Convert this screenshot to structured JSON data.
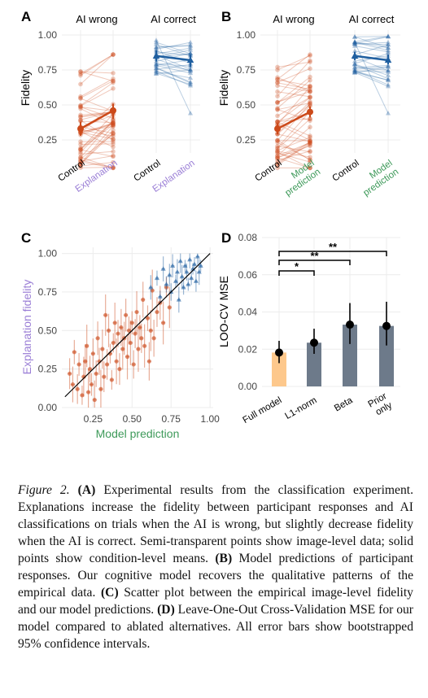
{
  "chart_data": [
    {
      "panel_label": "A",
      "type": "line",
      "ylabel": "Fidelity",
      "ylim": [
        0.0,
        1.0
      ],
      "yticks": [
        "1.00",
        "0.75",
        "0.50",
        "0.25"
      ],
      "groups": [
        {
          "title": "AI wrong",
          "conditions": [
            "Control",
            "Explanation"
          ],
          "mean": [
            0.33,
            0.46
          ],
          "ci_low": [
            0.28,
            0.4
          ],
          "ci_high": [
            0.38,
            0.51
          ],
          "color": "#cc4a1a",
          "marker": "circle",
          "label_colors": [
            "#000000",
            "#9b7fd6"
          ]
        },
        {
          "title": "AI correct",
          "conditions": [
            "Control",
            "Explanation"
          ],
          "mean": [
            0.85,
            0.82
          ],
          "ci_low": [
            0.81,
            0.77
          ],
          "ci_high": [
            0.89,
            0.86
          ],
          "color": "#1f5fa0",
          "marker": "triangle",
          "label_colors": [
            "#000000",
            "#9b7fd6"
          ]
        }
      ]
    },
    {
      "panel_label": "B",
      "type": "line",
      "ylabel": "Fidelity",
      "ylim": [
        0.0,
        1.0
      ],
      "yticks": [
        "1.00",
        "0.75",
        "0.50",
        "0.25"
      ],
      "groups": [
        {
          "title": "AI wrong",
          "conditions": [
            "Control",
            "Model prediction"
          ],
          "mean": [
            0.33,
            0.45
          ],
          "ci_low": [
            0.29,
            0.41
          ],
          "ci_high": [
            0.37,
            0.49
          ],
          "color": "#cc4a1a",
          "marker": "circle",
          "label_colors": [
            "#000000",
            "#3e9a5a"
          ]
        },
        {
          "title": "AI correct",
          "conditions": [
            "Control",
            "Model prediction"
          ],
          "mean": [
            0.85,
            0.82
          ],
          "ci_low": [
            0.82,
            0.79
          ],
          "ci_high": [
            0.88,
            0.86
          ],
          "color": "#1f5fa0",
          "marker": "triangle",
          "label_colors": [
            "#000000",
            "#3e9a5a"
          ]
        }
      ]
    },
    {
      "panel_label": "C",
      "type": "scatter",
      "xlabel": "Model prediction",
      "ylabel": "Explanation fidelity",
      "xlim": [
        0.05,
        1.02
      ],
      "ylim": [
        0.0,
        1.04
      ],
      "xticks": [
        "0.25",
        "0.50",
        "0.75",
        "1.00"
      ],
      "yticks": [
        "1.00",
        "0.75",
        "0.50",
        "0.25",
        "0.00"
      ],
      "xlabel_color": "#3e9a5a",
      "ylabel_color": "#9b7fd6",
      "reference_line": "y = x",
      "series": [
        {
          "name": "AI wrong",
          "color": "#cc4a1a",
          "marker": "circle",
          "points": [
            [
              0.1,
              0.22
            ],
            [
              0.12,
              0.15
            ],
            [
              0.13,
              0.36
            ],
            [
              0.15,
              0.12
            ],
            [
              0.16,
              0.28
            ],
            [
              0.18,
              0.08
            ],
            [
              0.19,
              0.2
            ],
            [
              0.2,
              0.3
            ],
            [
              0.21,
              0.4
            ],
            [
              0.22,
              0.1
            ],
            [
              0.23,
              0.25
            ],
            [
              0.24,
              0.15
            ],
            [
              0.25,
              0.35
            ],
            [
              0.26,
              0.05
            ],
            [
              0.27,
              0.22
            ],
            [
              0.28,
              0.45
            ],
            [
              0.29,
              0.3
            ],
            [
              0.3,
              0.12
            ],
            [
              0.31,
              0.38
            ],
            [
              0.32,
              0.2
            ],
            [
              0.33,
              0.6
            ],
            [
              0.34,
              0.28
            ],
            [
              0.35,
              0.5
            ],
            [
              0.36,
              0.35
            ],
            [
              0.37,
              0.18
            ],
            [
              0.38,
              0.42
            ],
            [
              0.39,
              0.55
            ],
            [
              0.4,
              0.3
            ],
            [
              0.41,
              0.48
            ],
            [
              0.42,
              0.25
            ],
            [
              0.43,
              0.52
            ],
            [
              0.44,
              0.38
            ],
            [
              0.45,
              0.45
            ],
            [
              0.46,
              0.6
            ],
            [
              0.47,
              0.33
            ],
            [
              0.48,
              0.5
            ],
            [
              0.49,
              0.42
            ],
            [
              0.5,
              0.55
            ],
            [
              0.51,
              0.28
            ],
            [
              0.52,
              0.48
            ],
            [
              0.53,
              0.62
            ],
            [
              0.54,
              0.38
            ],
            [
              0.55,
              0.52
            ],
            [
              0.56,
              0.45
            ],
            [
              0.57,
              0.7
            ],
            [
              0.58,
              0.4
            ],
            [
              0.6,
              0.58
            ],
            [
              0.61,
              0.3
            ],
            [
              0.62,
              0.5
            ],
            [
              0.63,
              0.76
            ],
            [
              0.64,
              0.45
            ],
            [
              0.66,
              0.62
            ],
            [
              0.68,
              0.68
            ],
            [
              0.7,
              0.55
            ],
            [
              0.72,
              0.78
            ],
            [
              0.74,
              0.65
            ]
          ],
          "ci_halfwidth": 0.1
        },
        {
          "name": "AI correct",
          "color": "#1f5fa0",
          "marker": "triangle",
          "points": [
            [
              0.62,
              0.78
            ],
            [
              0.66,
              0.84
            ],
            [
              0.68,
              0.72
            ],
            [
              0.7,
              0.9
            ],
            [
              0.72,
              0.8
            ],
            [
              0.74,
              0.86
            ],
            [
              0.75,
              0.75
            ],
            [
              0.76,
              0.92
            ],
            [
              0.78,
              0.82
            ],
            [
              0.79,
              0.88
            ],
            [
              0.8,
              0.7
            ],
            [
              0.81,
              0.95
            ],
            [
              0.82,
              0.85
            ],
            [
              0.83,
              0.78
            ],
            [
              0.84,
              0.92
            ],
            [
              0.85,
              0.88
            ],
            [
              0.86,
              0.8
            ],
            [
              0.87,
              0.96
            ],
            [
              0.88,
              0.84
            ],
            [
              0.89,
              0.9
            ],
            [
              0.9,
              0.93
            ],
            [
              0.91,
              0.82
            ],
            [
              0.92,
              0.98
            ],
            [
              0.93,
              0.88
            ],
            [
              0.94,
              0.92
            ]
          ],
          "ci_halfwidth": 0.06
        }
      ]
    },
    {
      "panel_label": "D",
      "type": "bar",
      "ylabel": "LOO-CV MSE",
      "ylim": [
        0.0,
        0.08
      ],
      "yticks": [
        "0.08",
        "0.06",
        "0.04",
        "0.02",
        "0.00"
      ],
      "categories": [
        "Full model",
        "L1-norm",
        "Beta",
        "Prior\nonly"
      ],
      "values": [
        0.0182,
        0.0235,
        0.0332,
        0.0325
      ],
      "ci_low": [
        0.0125,
        0.0175,
        0.0228,
        0.022
      ],
      "ci_high": [
        0.0245,
        0.031,
        0.0448,
        0.0455
      ],
      "colors": [
        "#fdc88c",
        "#6d7a8a",
        "#6d7a8a",
        "#6d7a8a"
      ],
      "significance": [
        {
          "from": 0,
          "to": 1,
          "label": "*"
        },
        {
          "from": 0,
          "to": 2,
          "label": "**"
        },
        {
          "from": 0,
          "to": 3,
          "label": "**"
        }
      ]
    }
  ],
  "caption": {
    "figure_label": "Figure 2.",
    "parts": [
      {
        "bold": "(A)",
        "text": " Experimental results from the classification experiment. Explanations increase the fidelity between participant responses and AI classifications on trials when the AI is wrong, but slightly decrease fidelity when the AI is correct. Semi-transparent points show image-level data; solid points show condition-level means. "
      },
      {
        "bold": "(B)",
        "text": " Model predictions of participant responses. Our cognitive model recovers the qualitative patterns of the empirical data. "
      },
      {
        "bold": "(C)",
        "text": " Scatter plot between the empirical image-level fidelity and our model predictions. "
      },
      {
        "bold": "(D)",
        "text": " Leave-One-Out Cross-Validation MSE for our model compared to ablated alternatives. All error bars show bootstrapped 95% confidence intervals."
      }
    ]
  }
}
